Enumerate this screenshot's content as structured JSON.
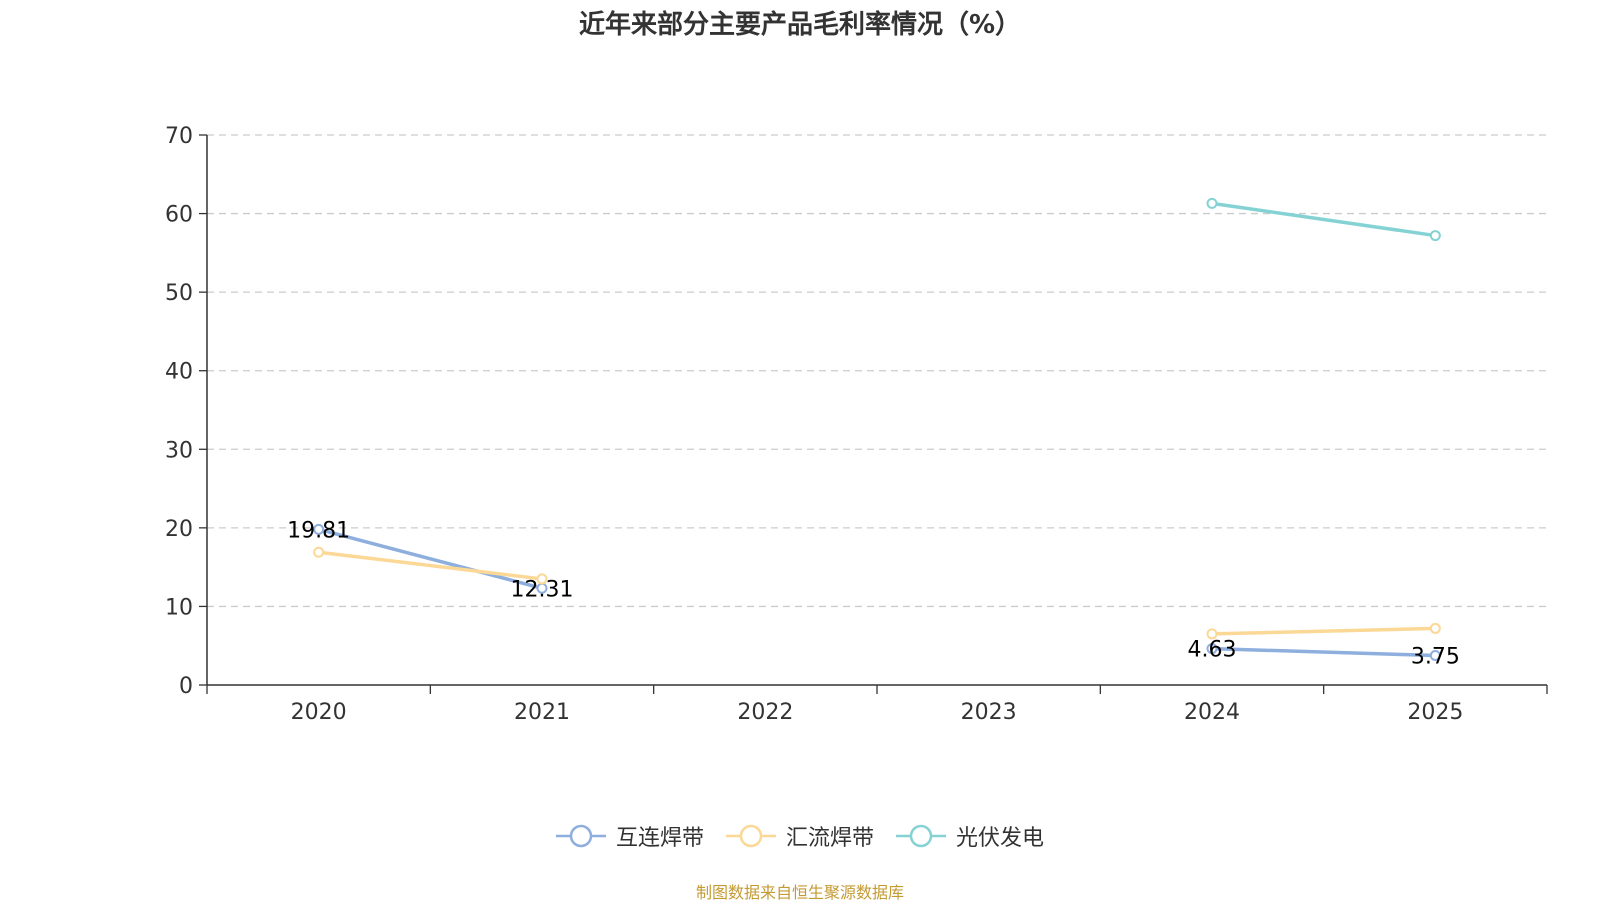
{
  "chart_data": {
    "type": "line",
    "title": "近年来部分主要产品毛利率情况（%）",
    "categories": [
      "2020",
      "2021",
      "2022",
      "2023",
      "2024",
      "2025"
    ],
    "ylim": [
      0,
      70
    ],
    "yticks": [
      0,
      10,
      20,
      30,
      40,
      50,
      60,
      70
    ],
    "grid": true,
    "legend_position": "bottom",
    "series": [
      {
        "name": "互连焊带",
        "color": "#8eaedd",
        "values": [
          19.81,
          12.31,
          null,
          null,
          4.63,
          3.75
        ],
        "labels": [
          "19.81",
          "12.31",
          null,
          null,
          "4.63",
          "3.75"
        ]
      },
      {
        "name": "汇流焊带",
        "color": "#fbd896",
        "values": [
          16.9,
          13.5,
          null,
          null,
          6.5,
          7.2
        ],
        "labels": [
          null,
          null,
          null,
          null,
          null,
          null
        ]
      },
      {
        "name": "光伏发电",
        "color": "#85d2d4",
        "values": [
          null,
          null,
          null,
          null,
          61.3,
          57.2
        ],
        "labels": [
          null,
          null,
          null,
          null,
          null,
          null
        ]
      }
    ]
  },
  "source_note": "制图数据来自恒生聚源数据库"
}
